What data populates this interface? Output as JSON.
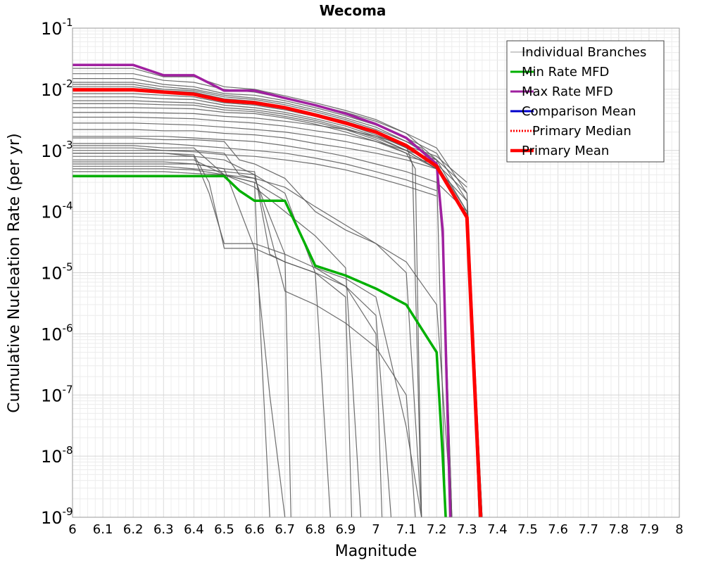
{
  "chart_data": {
    "type": "line",
    "title": "Wecoma",
    "xlabel": "Magnitude",
    "ylabel": "Cumulative Nucleation Rate (per yr)",
    "xlim": [
      6,
      8
    ],
    "ylim": [
      1e-09,
      0.1
    ],
    "yscale": "log",
    "grid": true,
    "legend_position": "top-right",
    "x_ticks": [
      "6",
      "6.1",
      "6.2",
      "6.3",
      "6.4",
      "6.5",
      "6.6",
      "6.7",
      "6.8",
      "6.9",
      "7",
      "7.1",
      "7.2",
      "7.3",
      "7.4",
      "7.5",
      "7.6",
      "7.7",
      "7.8",
      "7.9",
      "8"
    ],
    "y_ticks": [
      {
        "base": "10",
        "exp": "-9",
        "value": 1e-09
      },
      {
        "base": "10",
        "exp": "-8",
        "value": 1e-08
      },
      {
        "base": "10",
        "exp": "-7",
        "value": 1e-07
      },
      {
        "base": "10",
        "exp": "-6",
        "value": 1e-06
      },
      {
        "base": "10",
        "exp": "-5",
        "value": 1e-05
      },
      {
        "base": "10",
        "exp": "-4",
        "value": 0.0001
      },
      {
        "base": "10",
        "exp": "-3",
        "value": 0.001
      },
      {
        "base": "10",
        "exp": "-2",
        "value": 0.01
      },
      {
        "base": "10",
        "exp": "-1",
        "value": 0.1
      }
    ],
    "branch_color": "#555555",
    "series": [
      {
        "name": "Min Rate MFD",
        "color": "#00b000",
        "x": [
          6.0,
          6.1,
          6.2,
          6.3,
          6.4,
          6.5,
          6.55,
          6.6,
          6.7,
          6.8,
          6.9,
          7.0,
          7.1,
          7.2,
          7.22,
          7.23
        ],
        "y": [
          0.00038,
          0.00038,
          0.00038,
          0.00038,
          0.00038,
          0.00038,
          0.00022,
          0.00015,
          0.00015,
          1.3e-05,
          9e-06,
          5.5e-06,
          3e-06,
          5e-07,
          1e-08,
          1e-09
        ]
      },
      {
        "name": "Max Rate MFD",
        "color": "#a020a0",
        "x": [
          6.0,
          6.1,
          6.2,
          6.3,
          6.4,
          6.5,
          6.6,
          6.7,
          6.8,
          6.9,
          7.0,
          7.1,
          7.2,
          7.22,
          7.245
        ],
        "y": [
          0.025,
          0.025,
          0.025,
          0.017,
          0.017,
          0.0095,
          0.0095,
          0.0072,
          0.0055,
          0.004,
          0.0027,
          0.0016,
          0.0006,
          5e-05,
          1e-09
        ]
      },
      {
        "name": "Comparison Mean",
        "color": "#0000cc",
        "x": [],
        "y": []
      },
      {
        "name": "Primary Median",
        "color": "#ff0000",
        "dashed": true,
        "x": [],
        "y": []
      },
      {
        "name": "Primary Mean",
        "color": "#ff0000",
        "x": [
          6.0,
          6.1,
          6.2,
          6.3,
          6.4,
          6.5,
          6.6,
          6.7,
          6.8,
          6.9,
          7.0,
          7.1,
          7.2,
          7.3,
          7.345
        ],
        "y": [
          0.0098,
          0.0098,
          0.0098,
          0.009,
          0.0083,
          0.0065,
          0.006,
          0.005,
          0.0038,
          0.0028,
          0.002,
          0.0012,
          0.00055,
          8e-05,
          1e-09
        ]
      }
    ],
    "branches": [
      {
        "x": [
          6.0,
          6.2,
          6.3,
          6.4,
          6.5,
          6.6,
          6.7,
          6.8,
          6.9,
          7.0,
          7.1,
          7.2,
          7.22,
          7.25
        ],
        "y": [
          0.022,
          0.022,
          0.016,
          0.016,
          0.011,
          0.01,
          0.0078,
          0.006,
          0.0045,
          0.0032,
          0.0019,
          0.0007,
          5e-05,
          1e-09
        ]
      },
      {
        "x": [
          6.0,
          6.2,
          6.3,
          6.4,
          6.5,
          6.6,
          6.7,
          6.8,
          6.9,
          7.0,
          7.1,
          7.2,
          7.3,
          7.35
        ],
        "y": [
          0.018,
          0.018,
          0.014,
          0.013,
          0.01,
          0.009,
          0.0072,
          0.0055,
          0.0042,
          0.003,
          0.0019,
          0.0011,
          0.0002,
          1e-09
        ]
      },
      {
        "x": [
          6.0,
          6.2,
          6.3,
          6.4,
          6.5,
          6.6,
          6.7,
          6.8,
          6.9,
          7.0,
          7.1,
          7.2,
          7.3,
          7.35
        ],
        "y": [
          0.015,
          0.015,
          0.012,
          0.011,
          0.0085,
          0.008,
          0.0065,
          0.005,
          0.0037,
          0.0026,
          0.0016,
          0.0009,
          0.00015,
          1e-09
        ]
      },
      {
        "x": [
          6.0,
          6.2,
          6.3,
          6.4,
          6.5,
          6.6,
          6.7,
          6.8,
          6.9,
          7.0,
          7.1,
          7.15,
          7.2,
          7.23
        ],
        "y": [
          0.013,
          0.013,
          0.011,
          0.01,
          0.008,
          0.0072,
          0.006,
          0.0046,
          0.0034,
          0.0024,
          0.0014,
          0.0011,
          0.0005,
          1e-09
        ]
      },
      {
        "x": [
          6.0,
          6.2,
          6.3,
          6.4,
          6.5,
          6.6,
          6.7,
          6.8,
          6.9,
          7.0,
          7.1,
          7.2,
          7.3,
          7.34
        ],
        "y": [
          0.012,
          0.012,
          0.01,
          0.0095,
          0.0075,
          0.0068,
          0.0056,
          0.0043,
          0.0032,
          0.0022,
          0.0014,
          0.0007,
          0.0001,
          1e-09
        ]
      },
      {
        "x": [
          6.0,
          6.2,
          6.3,
          6.4,
          6.5,
          6.6,
          6.7,
          6.8,
          6.9,
          7.0,
          7.1,
          7.12,
          7.15
        ],
        "y": [
          0.011,
          0.011,
          0.0095,
          0.009,
          0.007,
          0.0064,
          0.0052,
          0.004,
          0.003,
          0.0021,
          0.0012,
          0.0006,
          1e-09
        ]
      },
      {
        "x": [
          6.0,
          6.2,
          6.3,
          6.4,
          6.5,
          6.6,
          6.7,
          6.8,
          6.9,
          7.0,
          7.1,
          7.2,
          7.22,
          7.25
        ],
        "y": [
          0.0095,
          0.0095,
          0.0088,
          0.0082,
          0.0065,
          0.006,
          0.005,
          0.0038,
          0.0028,
          0.0019,
          0.0011,
          0.00055,
          4e-05,
          1e-09
        ]
      },
      {
        "x": [
          6.0,
          6.2,
          6.3,
          6.4,
          6.5,
          6.6,
          6.7,
          6.8,
          6.9,
          7.0,
          7.1,
          7.2,
          7.3,
          7.35
        ],
        "y": [
          0.0085,
          0.0085,
          0.008,
          0.0075,
          0.006,
          0.0055,
          0.0046,
          0.0036,
          0.0027,
          0.0018,
          0.0011,
          0.0006,
          0.0001,
          1e-09
        ]
      },
      {
        "x": [
          6.0,
          6.2,
          6.3,
          6.4,
          6.5,
          6.6,
          6.7,
          6.8,
          6.9,
          7.0,
          7.1,
          7.2,
          7.22,
          7.25
        ],
        "y": [
          0.0075,
          0.0075,
          0.007,
          0.0068,
          0.0055,
          0.005,
          0.0042,
          0.0033,
          0.0025,
          0.0017,
          0.001,
          0.0005,
          3e-05,
          1e-09
        ]
      },
      {
        "x": [
          6.0,
          6.2,
          6.3,
          6.4,
          6.5,
          6.6,
          6.7,
          6.8,
          6.9,
          7.0,
          7.1,
          7.2,
          7.3,
          7.34
        ],
        "y": [
          0.0065,
          0.0065,
          0.0062,
          0.006,
          0.005,
          0.0046,
          0.0039,
          0.0031,
          0.0023,
          0.0016,
          0.001,
          0.0005,
          9e-05,
          1e-09
        ]
      },
      {
        "x": [
          6.0,
          6.2,
          6.3,
          6.4,
          6.5,
          6.6,
          6.7,
          6.8,
          6.9,
          7.0,
          7.1,
          7.13,
          7.15
        ],
        "y": [
          0.0058,
          0.0058,
          0.0056,
          0.0055,
          0.0046,
          0.0043,
          0.0036,
          0.0029,
          0.0022,
          0.0015,
          0.0009,
          0.0005,
          1e-09
        ]
      },
      {
        "x": [
          6.0,
          6.2,
          6.3,
          6.4,
          6.5,
          6.6,
          6.7,
          6.8,
          6.9,
          7.0,
          7.1,
          7.2,
          7.3,
          7.35
        ],
        "y": [
          0.005,
          0.005,
          0.0049,
          0.0048,
          0.0042,
          0.004,
          0.0034,
          0.0027,
          0.002,
          0.0014,
          0.0009,
          0.0005,
          8e-05,
          1e-09
        ]
      },
      {
        "x": [
          6.0,
          6.2,
          6.3,
          6.4,
          6.5,
          6.6,
          6.7,
          6.8,
          6.9,
          7.0,
          7.1,
          7.2,
          7.3
        ],
        "y": [
          0.0042,
          0.0042,
          0.0041,
          0.004,
          0.0036,
          0.0034,
          0.003,
          0.0026,
          0.0022,
          0.0017,
          0.0012,
          0.0008,
          0.0003
        ]
      },
      {
        "x": [
          6.0,
          6.2,
          6.3,
          6.4,
          6.5,
          6.6,
          6.7,
          6.8,
          6.9,
          7.0,
          7.1,
          7.2,
          7.3
        ],
        "y": [
          0.0035,
          0.0035,
          0.0034,
          0.0033,
          0.003,
          0.0028,
          0.0025,
          0.0021,
          0.0018,
          0.0014,
          0.001,
          0.0007,
          0.00025
        ]
      },
      {
        "x": [
          6.0,
          6.2,
          6.3,
          6.4,
          6.5,
          6.6,
          6.7,
          6.8,
          6.9,
          7.0,
          7.1,
          7.2,
          7.3
        ],
        "y": [
          0.0028,
          0.0028,
          0.0027,
          0.0026,
          0.0024,
          0.0022,
          0.002,
          0.0017,
          0.0014,
          0.0011,
          0.0008,
          0.0006,
          0.0002
        ]
      },
      {
        "x": [
          6.0,
          6.2,
          6.3,
          6.4,
          6.5,
          6.6,
          6.7,
          6.8,
          6.9,
          7.0,
          7.1,
          7.2,
          7.3
        ],
        "y": [
          0.0022,
          0.0022,
          0.0021,
          0.0021,
          0.0019,
          0.0018,
          0.0016,
          0.0013,
          0.0011,
          0.0009,
          0.0007,
          0.0005,
          0.00015
        ]
      },
      {
        "x": [
          6.0,
          6.2,
          6.3,
          6.4,
          6.5,
          6.6,
          6.7,
          6.8,
          6.9,
          7.0,
          7.1,
          7.2,
          7.3
        ],
        "y": [
          0.0017,
          0.0017,
          0.0017,
          0.0016,
          0.0015,
          0.0014,
          0.0012,
          0.001,
          0.0008,
          0.0006,
          0.00045,
          0.0003,
          0.0001
        ]
      },
      {
        "x": [
          6.0,
          6.2,
          6.3,
          6.4,
          6.5,
          6.6,
          6.7,
          6.8,
          6.9,
          7.0,
          7.1,
          7.2
        ],
        "y": [
          0.0013,
          0.0013,
          0.0013,
          0.0012,
          0.0011,
          0.001,
          0.0009,
          0.00075,
          0.0006,
          0.00045,
          0.00033,
          0.00022
        ]
      },
      {
        "x": [
          6.0,
          6.2,
          6.3,
          6.4,
          6.5,
          6.6,
          6.7,
          6.8,
          6.9,
          7.0,
          7.1,
          7.2
        ],
        "y": [
          0.001,
          0.001,
          0.001,
          0.00095,
          0.00085,
          0.0008,
          0.0007,
          0.0006,
          0.00048,
          0.00036,
          0.00026,
          0.00018
        ]
      },
      {
        "x": [
          6.0,
          6.2,
          6.3,
          6.4,
          6.5,
          6.55,
          6.6,
          6.7,
          6.8,
          6.9,
          7.0,
          7.1,
          7.2,
          7.25
        ],
        "y": [
          0.0016,
          0.0016,
          0.0015,
          0.0015,
          0.0014,
          0.0007,
          0.0006,
          0.00035,
          0.0001,
          5e-05,
          3e-05,
          1.5e-05,
          3e-06,
          1e-09
        ]
      },
      {
        "x": [
          6.0,
          6.2,
          6.3,
          6.4,
          6.5,
          6.6,
          6.7,
          6.8,
          6.9,
          7.0,
          7.1,
          7.15
        ],
        "y": [
          0.0012,
          0.0012,
          0.0011,
          0.0011,
          0.0004,
          0.00035,
          0.00025,
          0.00012,
          6e-05,
          3e-05,
          1e-05,
          1e-09
        ]
      },
      {
        "x": [
          6.0,
          6.2,
          6.3,
          6.4,
          6.45,
          6.5,
          6.6,
          6.65,
          6.7
        ],
        "y": [
          0.0009,
          0.0009,
          0.0009,
          0.00085,
          0.0003,
          2.5e-05,
          2.5e-05,
          1e-07,
          1e-09
        ]
      },
      {
        "x": [
          6.0,
          6.2,
          6.3,
          6.4,
          6.45,
          6.5,
          6.6,
          6.7,
          6.72
        ],
        "y": [
          0.0008,
          0.0008,
          0.0008,
          0.0008,
          0.0002,
          3e-05,
          3e-05,
          2e-05,
          1e-09
        ]
      },
      {
        "x": [
          6.0,
          6.2,
          6.3,
          6.4,
          6.5,
          6.6,
          6.7,
          6.8,
          6.9,
          6.95
        ],
        "y": [
          0.0007,
          0.0007,
          0.0007,
          0.0007,
          0.0004,
          0.00025,
          0.0001,
          4e-05,
          1.2e-05,
          1e-09
        ]
      },
      {
        "x": [
          6.0,
          6.2,
          6.3,
          6.4,
          6.5,
          6.6,
          6.65,
          6.7,
          6.8,
          6.9,
          7.0,
          7.05
        ],
        "y": [
          0.0006,
          0.0006,
          0.0006,
          0.0006,
          0.0005,
          0.00045,
          2e-05,
          1.5e-05,
          1e-05,
          6e-06,
          2e-06,
          1e-09
        ]
      },
      {
        "x": [
          6.0,
          6.2,
          6.3,
          6.4,
          6.5,
          6.6,
          6.7,
          6.8,
          6.9,
          7.0,
          7.1,
          7.15
        ],
        "y": [
          0.0005,
          0.0005,
          0.0005,
          0.00048,
          0.0004,
          0.0003,
          0.00015,
          1.2e-05,
          8e-06,
          4e-06,
          3e-08,
          1e-09
        ]
      },
      {
        "x": [
          6.0,
          6.2,
          6.3,
          6.4,
          6.5,
          6.6,
          6.7,
          6.8,
          6.85
        ],
        "y": [
          0.0009,
          0.0009,
          0.0009,
          0.0008,
          0.0007,
          0.0004,
          0.0002,
          1e-05,
          1e-09
        ]
      },
      {
        "x": [
          6.0,
          6.2,
          6.3,
          6.4,
          6.5,
          6.6,
          6.7,
          6.8,
          6.9,
          6.92
        ],
        "y": [
          0.00065,
          0.00065,
          0.00065,
          0.0006,
          0.0005,
          2.5e-05,
          1.5e-05,
          1e-05,
          4e-06,
          1e-09
        ]
      },
      {
        "x": [
          6.0,
          6.2,
          6.3,
          6.4,
          6.5,
          6.6,
          6.7,
          6.8,
          6.9,
          7.0,
          7.1,
          7.13
        ],
        "y": [
          0.00055,
          0.00055,
          0.00055,
          0.0005,
          0.00045,
          0.0004,
          5e-06,
          3e-06,
          1.5e-06,
          6e-07,
          1e-07,
          1e-09
        ]
      },
      {
        "x": [
          6.0,
          6.2,
          6.3,
          6.4,
          6.5,
          6.6,
          6.62,
          6.65
        ],
        "y": [
          0.00045,
          0.00045,
          0.00045,
          0.00042,
          0.0004,
          0.0003,
          1e-06,
          1e-09
        ]
      },
      {
        "x": [
          6.0,
          6.2,
          6.3,
          6.4,
          6.5,
          6.55,
          6.6,
          6.7,
          6.8,
          6.9,
          7.0,
          7.02
        ],
        "y": [
          0.0011,
          0.0011,
          0.001,
          0.001,
          0.0009,
          0.0004,
          0.00035,
          2e-05,
          1.2e-05,
          6e-06,
          1e-06,
          1e-09
        ]
      }
    ],
    "legend": [
      {
        "label": "Individual Branches",
        "color": "#999999",
        "style": "thin"
      },
      {
        "label": "Min Rate MFD",
        "color": "#00b000",
        "style": "solid"
      },
      {
        "label": "Max Rate MFD",
        "color": "#a020a0",
        "style": "solid"
      },
      {
        "label": "Comparison Mean",
        "color": "#0000cc",
        "style": "solid"
      },
      {
        "label": "Primary Median",
        "color": "#ff0000",
        "style": "dotted"
      },
      {
        "label": "Primary Mean",
        "color": "#ff0000",
        "style": "thick"
      }
    ]
  }
}
